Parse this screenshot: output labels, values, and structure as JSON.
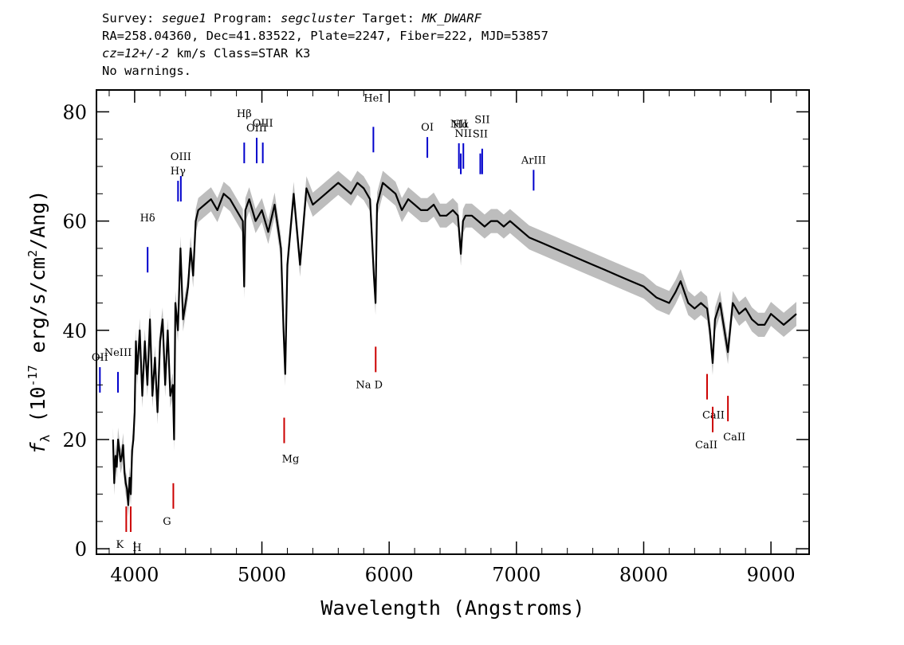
{
  "header": {
    "line1": {
      "survey_label": "Survey: ",
      "survey": "segue1",
      "program_label": " Program: ",
      "program": "segcluster",
      "target_label": " Target: ",
      "target": "MK_DWARF"
    },
    "line2": "RA=258.04360, Dec=41.83522, Plate=2247, Fiber=222, MJD=53857",
    "line3": {
      "cz": "cz=12+/-2",
      "rest": " km/s Class=STAR K3"
    },
    "line4": "No warnings."
  },
  "colors": {
    "spectrum": "#000000",
    "error_band": "#bdbdbd",
    "emission_line": "#0000cc",
    "absorption_line": "#cc0000"
  },
  "chart_data": {
    "type": "line",
    "xlabel": "Wavelength (Angstroms)",
    "ylabel": {
      "prefix": "f",
      "sub": "λ",
      "mid": " (10",
      "exp": "-17",
      "mid2": " erg/s/cm",
      "exp2": "2",
      "end": "/Ang)"
    },
    "xlim": [
      3700,
      9300
    ],
    "ylim": [
      -1,
      84
    ],
    "x_ticks": [
      4000,
      5000,
      6000,
      7000,
      8000,
      9000
    ],
    "y_ticks": [
      0,
      20,
      40,
      60,
      80
    ],
    "series": [
      {
        "x": [
          3830,
          3840,
          3850,
          3860,
          3870,
          3880,
          3890,
          3900,
          3910,
          3920,
          3930,
          3940,
          3950,
          3960,
          3970,
          3980,
          3990,
          4000,
          4010,
          4020,
          4040,
          4060,
          4080,
          4100,
          4120,
          4140,
          4160,
          4180,
          4200,
          4220,
          4240,
          4260,
          4280,
          4300,
          4310,
          4320,
          4340,
          4360,
          4380,
          4400,
          4420,
          4440,
          4460,
          4480,
          4500,
          4550,
          4600,
          4650,
          4700,
          4750,
          4800,
          4850,
          4861,
          4870,
          4900,
          4950,
          5000,
          5050,
          5100,
          5150,
          5170,
          5183,
          5200,
          5250,
          5300,
          5350,
          5400,
          5450,
          5500,
          5550,
          5600,
          5650,
          5700,
          5750,
          5800,
          5850,
          5880,
          5893,
          5905,
          5950,
          6000,
          6050,
          6100,
          6150,
          6200,
          6250,
          6300,
          6350,
          6400,
          6450,
          6500,
          6540,
          6563,
          6580,
          6600,
          6650,
          6700,
          6750,
          6800,
          6850,
          6900,
          6950,
          7000,
          7100,
          7200,
          7300,
          7400,
          7500,
          7600,
          7700,
          7800,
          7900,
          8000,
          8100,
          8200,
          8250,
          8290,
          8350,
          8400,
          8450,
          8498,
          8520,
          8542,
          8560,
          8600,
          8662,
          8700,
          8750,
          8800,
          8850,
          8900,
          8950,
          9000,
          9050,
          9100,
          9150,
          9200
        ],
        "values": [
          20,
          12,
          17,
          15,
          20,
          18,
          16,
          17,
          19,
          14,
          12,
          11,
          8,
          13,
          10,
          18,
          20,
          25,
          38,
          32,
          40,
          28,
          38,
          30,
          42,
          28,
          35,
          25,
          38,
          42,
          30,
          40,
          28,
          30,
          20,
          45,
          40,
          55,
          42,
          45,
          48,
          55,
          50,
          60,
          62,
          63,
          64,
          62,
          65,
          64,
          62,
          60,
          48,
          62,
          64,
          60,
          62,
          58,
          63,
          55,
          40,
          32,
          52,
          65,
          52,
          66,
          63,
          64,
          65,
          66,
          67,
          66,
          65,
          67,
          66,
          64,
          50,
          45,
          63,
          67,
          66,
          65,
          62,
          64,
          63,
          62,
          62,
          63,
          61,
          61,
          62,
          61,
          54,
          60,
          61,
          61,
          60,
          59,
          60,
          60,
          59,
          60,
          59,
          57,
          56,
          55,
          54,
          53,
          52,
          51,
          50,
          49,
          48,
          46,
          45,
          47,
          49,
          45,
          44,
          45,
          44,
          40,
          34,
          42,
          45,
          36,
          45,
          43,
          44,
          42,
          41,
          41,
          43,
          42,
          41,
          42,
          43
        ],
        "error": 2.2
      }
    ],
    "annotations": [
      {
        "label": "OII",
        "x": 3727,
        "type": "emission"
      },
      {
        "label": "NeIII",
        "x": 3869,
        "type": "emission"
      },
      {
        "label": "Hδ",
        "x": 4102,
        "type": "emission"
      },
      {
        "label": "Hγ",
        "x": 4341,
        "type": "emission"
      },
      {
        "label": "OIII",
        "x": 4363,
        "type": "emission"
      },
      {
        "label": "Hβ",
        "x": 4861,
        "type": "emission"
      },
      {
        "label": "OIII",
        "x": 4959,
        "type": "emission"
      },
      {
        "label": "OIII",
        "x": 5007,
        "type": "emission"
      },
      {
        "label": "HeI",
        "x": 5876,
        "type": "emission"
      },
      {
        "label": "OI",
        "x": 6300,
        "type": "emission"
      },
      {
        "label": "NII",
        "x": 6548,
        "type": "emission"
      },
      {
        "label": "Hα",
        "x": 6563,
        "type": "emission"
      },
      {
        "label": "NII",
        "x": 6583,
        "type": "emission"
      },
      {
        "label": "SII",
        "x": 6716,
        "type": "emission"
      },
      {
        "label": "SII",
        "x": 6731,
        "type": "emission"
      },
      {
        "label": "ArIII",
        "x": 7135,
        "type": "emission"
      },
      {
        "label": "K",
        "x": 3934,
        "type": "absorption"
      },
      {
        "label": "H",
        "x": 3969,
        "type": "absorption"
      },
      {
        "label": "G",
        "x": 4304,
        "type": "absorption"
      },
      {
        "label": "Mg",
        "x": 5175,
        "type": "absorption"
      },
      {
        "label": "Na D",
        "x": 5894,
        "type": "absorption"
      },
      {
        "label": "CaII",
        "x": 8498,
        "type": "absorption"
      },
      {
        "label": "CaII",
        "x": 8542,
        "type": "absorption"
      },
      {
        "label": "CaII",
        "x": 8662,
        "type": "absorption"
      }
    ]
  }
}
